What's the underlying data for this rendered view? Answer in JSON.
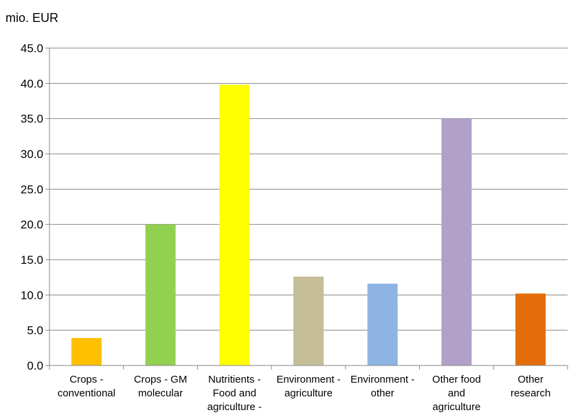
{
  "chart_data": {
    "type": "bar",
    "ylabel": "mio. EUR",
    "ylim": [
      0,
      45
    ],
    "yticks": [
      "0.0",
      "5.0",
      "10.0",
      "15.0",
      "20.0",
      "25.0",
      "30.0",
      "35.0",
      "40.0",
      "45.0"
    ],
    "grid": true,
    "categories": [
      [
        "Crops -",
        "conventional"
      ],
      [
        "Crops - GM",
        "molecular"
      ],
      [
        "Nutritients -",
        "Food and",
        "agriculture -"
      ],
      [
        "Environment -",
        "agriculture"
      ],
      [
        "Environment -",
        "other"
      ],
      [
        "Other food",
        "and",
        "agriculture"
      ],
      [
        "Other",
        "research"
      ]
    ],
    "values": [
      3.9,
      20.0,
      39.8,
      12.6,
      11.6,
      35.0,
      10.2
    ],
    "colors": [
      "#FFC000",
      "#92D050",
      "#FFFF00",
      "#C4BD97",
      "#8DB4E2",
      "#B1A0C7",
      "#E46C0A"
    ]
  }
}
